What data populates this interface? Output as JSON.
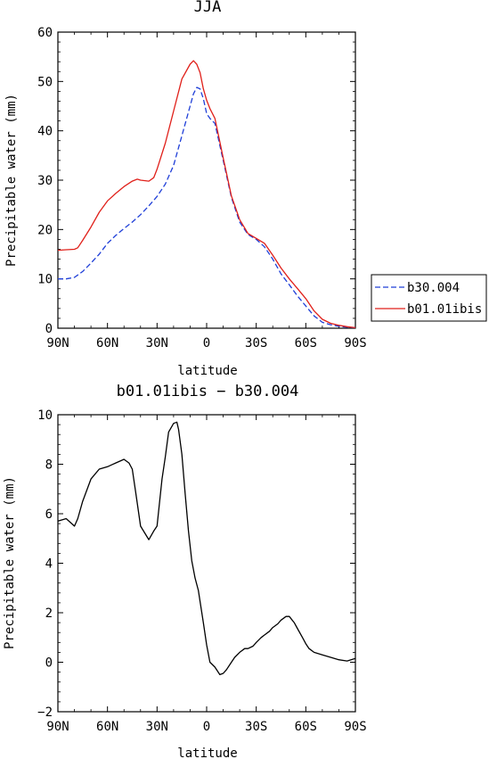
{
  "chart_data": [
    {
      "type": "line",
      "title": "JJA",
      "xlabel": "latitude",
      "ylabel": "Precipitable water (mm)",
      "xlim": [
        90,
        -90
      ],
      "ylim": [
        0,
        60
      ],
      "yticks": [
        0,
        10,
        20,
        30,
        40,
        50,
        60
      ],
      "xtick_values": [
        90,
        60,
        30,
        0,
        -30,
        -60,
        -90
      ],
      "xtick_labels": [
        "90N",
        "60N",
        "30N",
        "0",
        "30S",
        "60S",
        "90S"
      ],
      "legend": "right",
      "series": [
        {
          "name": "b30.004",
          "color": "#1f3fd8",
          "dash": "dashed",
          "x": [
            90,
            85,
            80,
            75,
            70,
            65,
            60,
            55,
            50,
            45,
            40,
            35,
            30,
            25,
            20,
            15,
            10,
            8,
            6,
            4,
            2,
            0,
            -2,
            -5,
            -10,
            -15,
            -20,
            -25,
            -30,
            -35,
            -40,
            -45,
            -50,
            -55,
            -60,
            -65,
            -70,
            -75,
            -80,
            -85,
            -90
          ],
          "values": [
            10,
            10,
            10.3,
            11.5,
            13.2,
            15,
            17.2,
            18.8,
            20.2,
            21.5,
            23,
            24.8,
            26.7,
            29.2,
            33,
            39,
            45,
            47.5,
            48.8,
            48.5,
            46.5,
            43.5,
            42.5,
            41.5,
            34,
            26.5,
            21.5,
            19,
            18,
            16.5,
            14,
            11,
            8.8,
            6.5,
            4.5,
            2.5,
            1.2,
            0.7,
            0.4,
            0.2,
            0.1
          ]
        },
        {
          "name": "b01.01ibis",
          "color": "#e0201a",
          "dash": "solid",
          "x": [
            90,
            85,
            80,
            78,
            75,
            70,
            65,
            60,
            55,
            50,
            45,
            42,
            40,
            35,
            32,
            30,
            25,
            20,
            15,
            10,
            8,
            6,
            4,
            2,
            0,
            -2,
            -5,
            -10,
            -15,
            -20,
            -25,
            -30,
            -35,
            -40,
            -45,
            -50,
            -55,
            -60,
            -65,
            -70,
            -75,
            -80,
            -85,
            -90
          ],
          "values": [
            15.8,
            15.9,
            16,
            16.3,
            17.8,
            20.5,
            23.5,
            25.8,
            27.3,
            28.7,
            29.8,
            30.2,
            30,
            29.8,
            30.5,
            32.2,
            37.5,
            44,
            50.5,
            53.5,
            54.2,
            53.5,
            51.8,
            48.5,
            46.2,
            44.5,
            42.5,
            34.5,
            26.8,
            22,
            19.2,
            18.2,
            17.2,
            14.8,
            12.2,
            10,
            8,
            6,
            3.5,
            1.8,
            1,
            0.6,
            0.3,
            0.1
          ]
        }
      ]
    },
    {
      "type": "line",
      "title": "b01.01ibis − b30.004",
      "xlabel": "latitude",
      "ylabel": "Precipitable water (mm)",
      "xlim": [
        90,
        -90
      ],
      "ylim": [
        -2,
        10
      ],
      "yticks": [
        -2,
        0,
        2,
        4,
        6,
        8,
        10
      ],
      "xtick_values": [
        90,
        60,
        30,
        0,
        -30,
        -60,
        -90
      ],
      "xtick_labels": [
        "90N",
        "60N",
        "30N",
        "0",
        "30S",
        "60S",
        "90S"
      ],
      "series": [
        {
          "color": "#000000",
          "dash": "solid",
          "x": [
            90,
            85,
            80,
            78,
            75,
            70,
            65,
            60,
            55,
            50,
            47,
            45,
            43,
            40,
            35,
            32,
            30,
            27,
            25,
            23,
            20,
            18,
            17,
            15,
            13,
            11,
            9,
            7,
            5,
            2,
            0,
            -2,
            -5,
            -8,
            -10,
            -12,
            -15,
            -17,
            -20,
            -23,
            -25,
            -28,
            -30,
            -33,
            -35,
            -38,
            -40,
            -43,
            -45,
            -48,
            -50,
            -53,
            -55,
            -58,
            -60,
            -62,
            -65,
            -70,
            -75,
            -80,
            -85,
            -90
          ],
          "values": [
            5.7,
            5.8,
            5.5,
            5.8,
            6.5,
            7.4,
            7.8,
            7.9,
            8.05,
            8.2,
            8.05,
            7.8,
            6.9,
            5.5,
            4.95,
            5.3,
            5.5,
            7.4,
            8.3,
            9.3,
            9.65,
            9.7,
            9.4,
            8.4,
            6.8,
            5.3,
            4.1,
            3.4,
            2.9,
            1.6,
            0.7,
            0,
            -0.2,
            -0.5,
            -0.45,
            -0.3,
            0,
            0.2,
            0.4,
            0.55,
            0.55,
            0.65,
            0.8,
            1,
            1.1,
            1.25,
            1.4,
            1.55,
            1.7,
            1.85,
            1.85,
            1.6,
            1.35,
            1,
            0.75,
            0.55,
            0.4,
            0.3,
            0.2,
            0.1,
            0.05,
            0.15
          ]
        }
      ]
    }
  ]
}
